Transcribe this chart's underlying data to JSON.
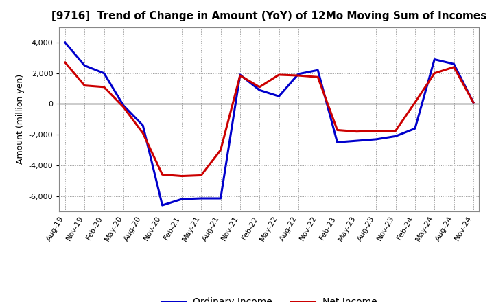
{
  "title": "[9716]  Trend of Change in Amount (YoY) of 12Mo Moving Sum of Incomes",
  "ylabel": "Amount (million yen)",
  "background_color": "#ffffff",
  "plot_bg_color": "#ffffff",
  "grid_color": "#999999",
  "x_labels": [
    "Aug-19",
    "Nov-19",
    "Feb-20",
    "May-20",
    "Aug-20",
    "Nov-20",
    "Feb-21",
    "May-21",
    "Aug-21",
    "Nov-21",
    "Feb-22",
    "May-22",
    "Aug-22",
    "Nov-22",
    "Feb-23",
    "May-23",
    "Aug-23",
    "Nov-23",
    "Feb-24",
    "May-24",
    "Aug-24",
    "Nov-24"
  ],
  "ordinary_income": [
    4000,
    2500,
    2000,
    -100,
    -1400,
    -6600,
    -6200,
    -6150,
    -6150,
    1900,
    900,
    500,
    1950,
    2200,
    -2500,
    -2400,
    -2300,
    -2100,
    -1600,
    2900,
    2600,
    100
  ],
  "net_income": [
    2700,
    1200,
    1100,
    -200,
    -1900,
    -4600,
    -4700,
    -4650,
    -3000,
    1850,
    1100,
    1900,
    1850,
    1750,
    -1700,
    -1800,
    -1750,
    -1750,
    100,
    2000,
    2400,
    100
  ],
  "ordinary_color": "#0000cc",
  "net_color": "#cc0000",
  "ylim": [
    -7000,
    5000
  ],
  "yticks": [
    -6000,
    -4000,
    -2000,
    0,
    2000,
    4000
  ],
  "line_width": 2.2,
  "title_fontsize": 11,
  "tick_fontsize": 8,
  "ylabel_fontsize": 9,
  "legend_fontsize": 10
}
